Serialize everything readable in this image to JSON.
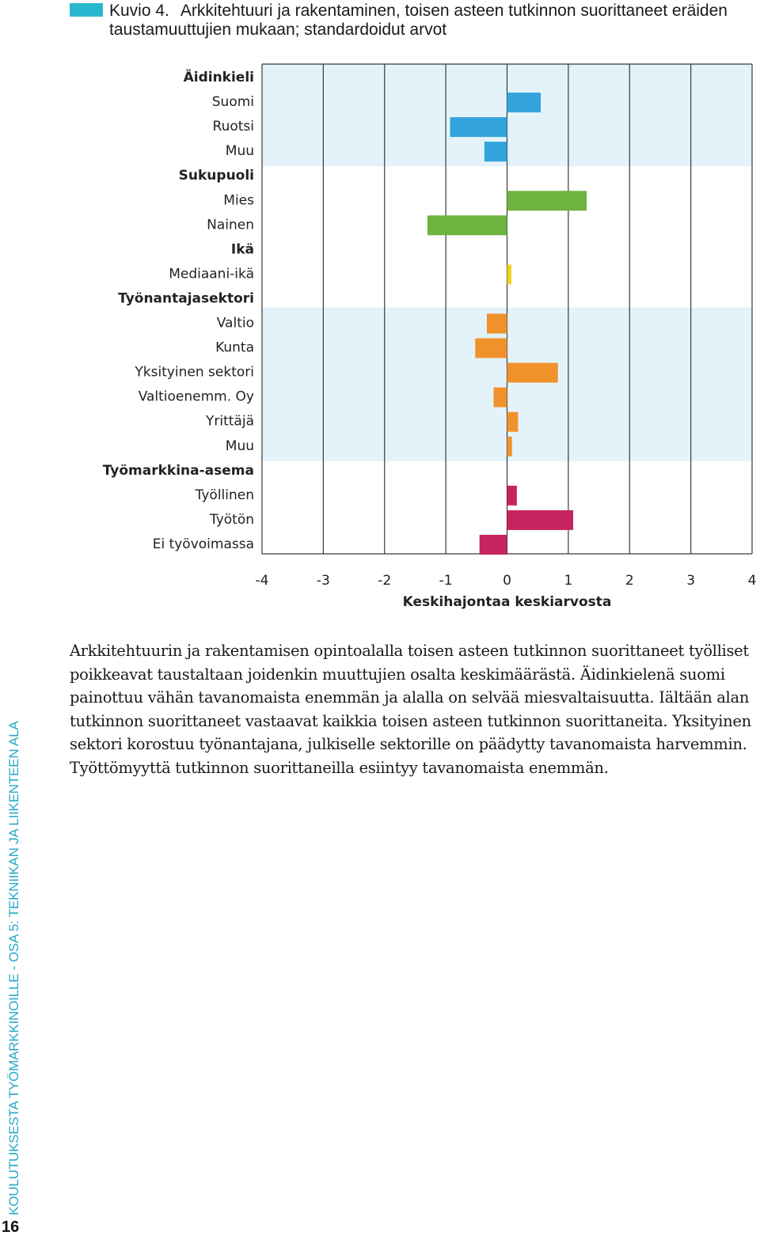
{
  "figure": {
    "number": "Kuvio 4.",
    "caption": "Arkkitehtuuri ja rakentaminen, toisen asteen tutkinnon suorittaneet eräiden taustamuuttujien mukaan; standardoidut arvot"
  },
  "chart_data": {
    "type": "bar",
    "orientation": "horizontal",
    "xlabel": "Keskihajontaa keskiarvosta",
    "xlim": [
      -4,
      4
    ],
    "xticks": [
      -4,
      -3,
      -2,
      -1,
      0,
      1,
      2,
      3,
      4
    ],
    "rows": [
      {
        "label": "Äidinkieli",
        "header": true
      },
      {
        "label": "Suomi",
        "value": 0.55,
        "group": "aidinkieli"
      },
      {
        "label": "Ruotsi",
        "value": -0.93,
        "group": "aidinkieli"
      },
      {
        "label": "Muu",
        "value": -0.37,
        "group": "aidinkieli"
      },
      {
        "label": "Sukupuoli",
        "header": true
      },
      {
        "label": "Mies",
        "value": 1.3,
        "group": "sukupuoli"
      },
      {
        "label": "Nainen",
        "value": -1.3,
        "group": "sukupuoli"
      },
      {
        "label": "Ikä",
        "header": true
      },
      {
        "label": "Mediaani-ikä",
        "value": 0.07,
        "group": "ika"
      },
      {
        "label": "Työnantajasektori",
        "header": true
      },
      {
        "label": "Valtio",
        "value": -0.33,
        "group": "sektori"
      },
      {
        "label": "Kunta",
        "value": -0.52,
        "group": "sektori"
      },
      {
        "label": "Yksityinen sektori",
        "value": 0.83,
        "group": "sektori"
      },
      {
        "label": "Valtioenemm. Oy",
        "value": -0.22,
        "group": "sektori"
      },
      {
        "label": "Yrittäjä",
        "value": 0.18,
        "group": "sektori"
      },
      {
        "label": "Muu",
        "value": 0.08,
        "group": "sektori"
      },
      {
        "label": "Työmarkkina-asema",
        "header": true
      },
      {
        "label": "Työllinen",
        "value": 0.16,
        "group": "tyomarkkina"
      },
      {
        "label": "Työtön",
        "value": 1.08,
        "group": "tyomarkkina"
      },
      {
        "label": "Ei työvoimassa",
        "value": -0.45,
        "group": "tyomarkkina"
      }
    ]
  },
  "colors": {
    "aidinkieli": "#33a3dc",
    "sukupuoli": "#6db33f",
    "ika": "#f2d11c",
    "sektori": "#f0922b",
    "tyomarkkina": "#c7245f",
    "band": "#e4f3fa",
    "grid": "#3a3a3a",
    "marker": "#2bb6cf"
  },
  "body": "Arkkitehtuurin ja rakentamisen opintoalalla toisen asteen tutkinnon suorittaneet työlliset poikkeavat taustaltaan joidenkin muuttujien osalta keskimäärästä. Äidinkielenä suomi painottuu vähän tavanomaista enemmän ja alalla on selvää miesvaltaisuutta. Iältään alan tutkinnon suorittaneet vastaavat kaikkia toisen asteen tutkinnon suorittaneita. Yksityinen sektori korostuu työnantajana, julkiselle sektorille on päädytty tavanomaista harvemmin. Työttömyyttä tutkinnon suorittaneilla esiintyy tavanomaista enemmän.",
  "footer": {
    "vertical": "KOULUTUKSESTA TYÖMARKKINOILLE - OSA 5: TEKNIIKAN JA LIIKENTEEN ALA",
    "page_number": "16"
  }
}
